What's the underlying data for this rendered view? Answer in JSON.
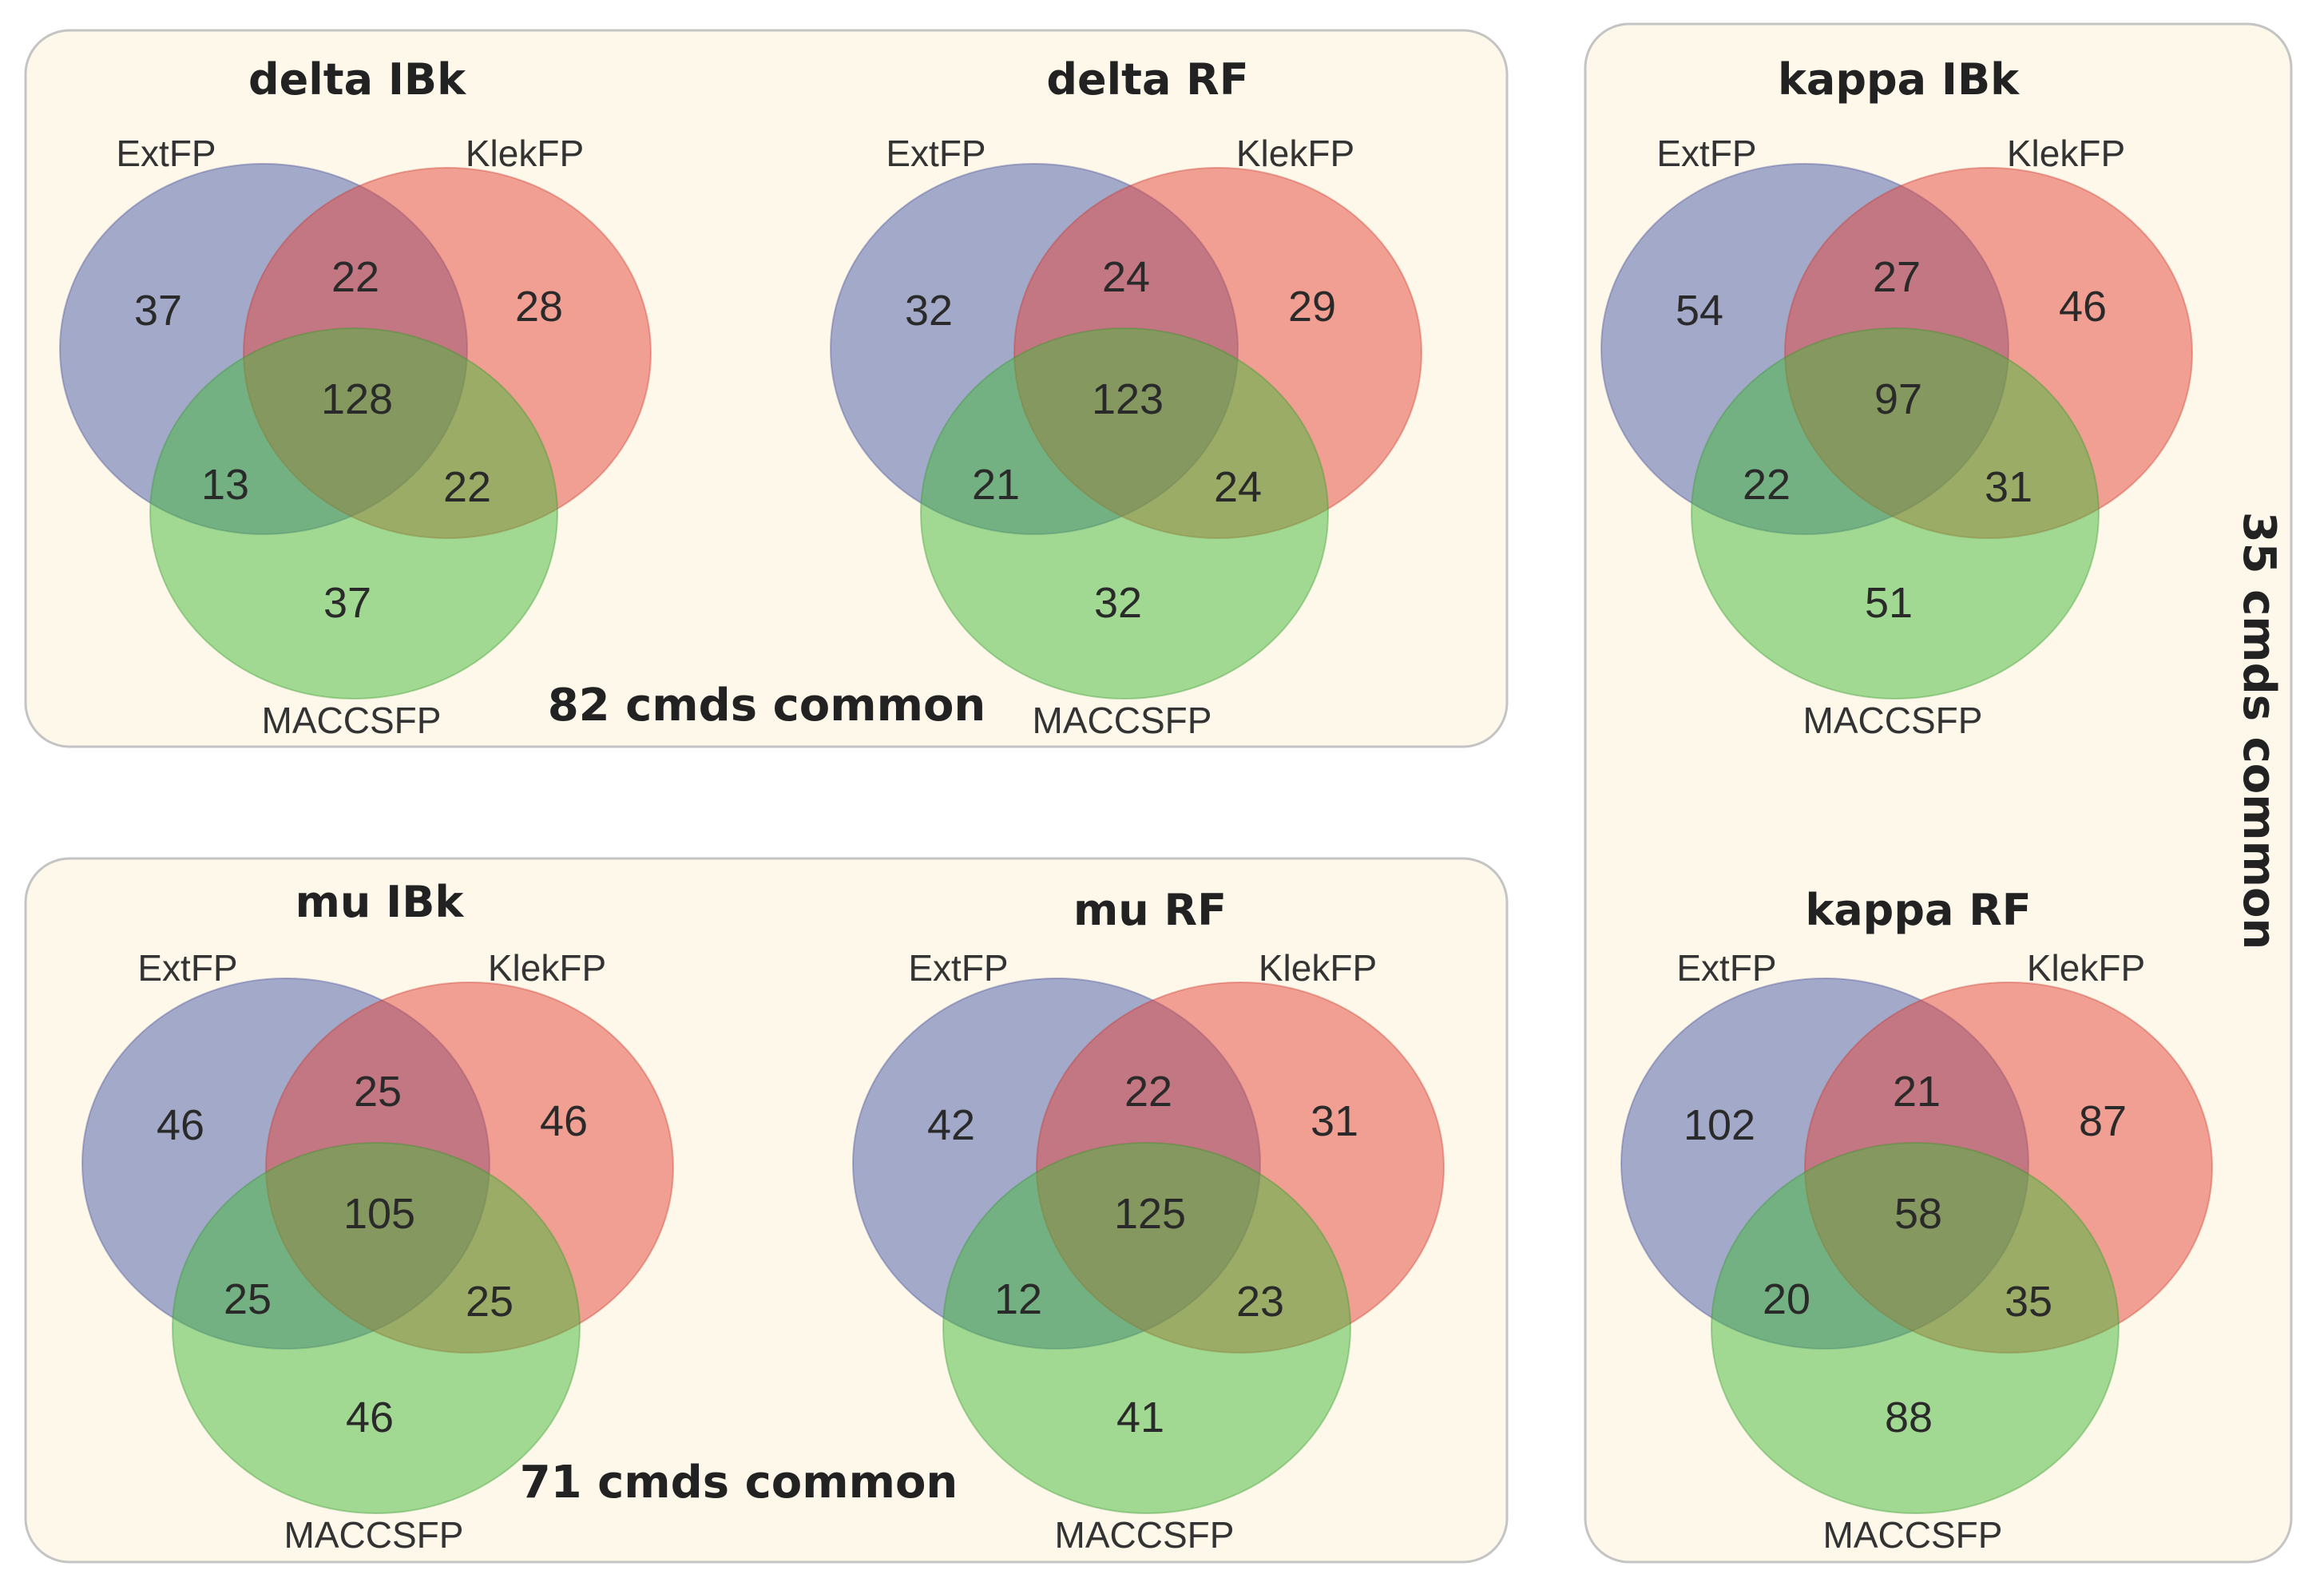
{
  "colors": {
    "ext": "#5060aa",
    "klek": "#e4463c",
    "maccs": "#46b93c",
    "panel_bg": "#fdf8e9"
  },
  "set_labels": {
    "ext": "ExtFP",
    "klek": "KlekFP",
    "maccs": "MACCSFP"
  },
  "groups": {
    "delta": {
      "common": "82 cmds common"
    },
    "mu": {
      "common": "71 cmds common"
    },
    "kappa": {
      "common": "35 cmds common"
    }
  },
  "diagrams": {
    "delta_ibk": {
      "title": "delta IBk",
      "ext_only": "37",
      "klek_only": "28",
      "maccs_only": "37",
      "ext_klek": "22",
      "ext_maccs": "13",
      "klek_maccs": "22",
      "all": "128"
    },
    "delta_rf": {
      "title": "delta RF",
      "ext_only": "32",
      "klek_only": "29",
      "maccs_only": "32",
      "ext_klek": "24",
      "ext_maccs": "21",
      "klek_maccs": "24",
      "all": "123"
    },
    "kappa_ibk": {
      "title": "kappa IBk",
      "ext_only": "54",
      "klek_only": "46",
      "maccs_only": "51",
      "ext_klek": "27",
      "ext_maccs": "22",
      "klek_maccs": "31",
      "all": "97"
    },
    "mu_ibk": {
      "title": "mu IBk",
      "ext_only": "46",
      "klek_only": "46",
      "maccs_only": "46",
      "ext_klek": "25",
      "ext_maccs": "25",
      "klek_maccs": "25",
      "all": "105"
    },
    "mu_rf": {
      "title": "mu RF",
      "ext_only": "42",
      "klek_only": "31",
      "maccs_only": "41",
      "ext_klek": "22",
      "ext_maccs": "12",
      "klek_maccs": "23",
      "all": "125"
    },
    "kappa_rf": {
      "title": "kappa RF",
      "ext_only": "102",
      "klek_only": "87",
      "maccs_only": "88",
      "ext_klek": "21",
      "ext_maccs": "20",
      "klek_maccs": "35",
      "all": "58"
    }
  }
}
